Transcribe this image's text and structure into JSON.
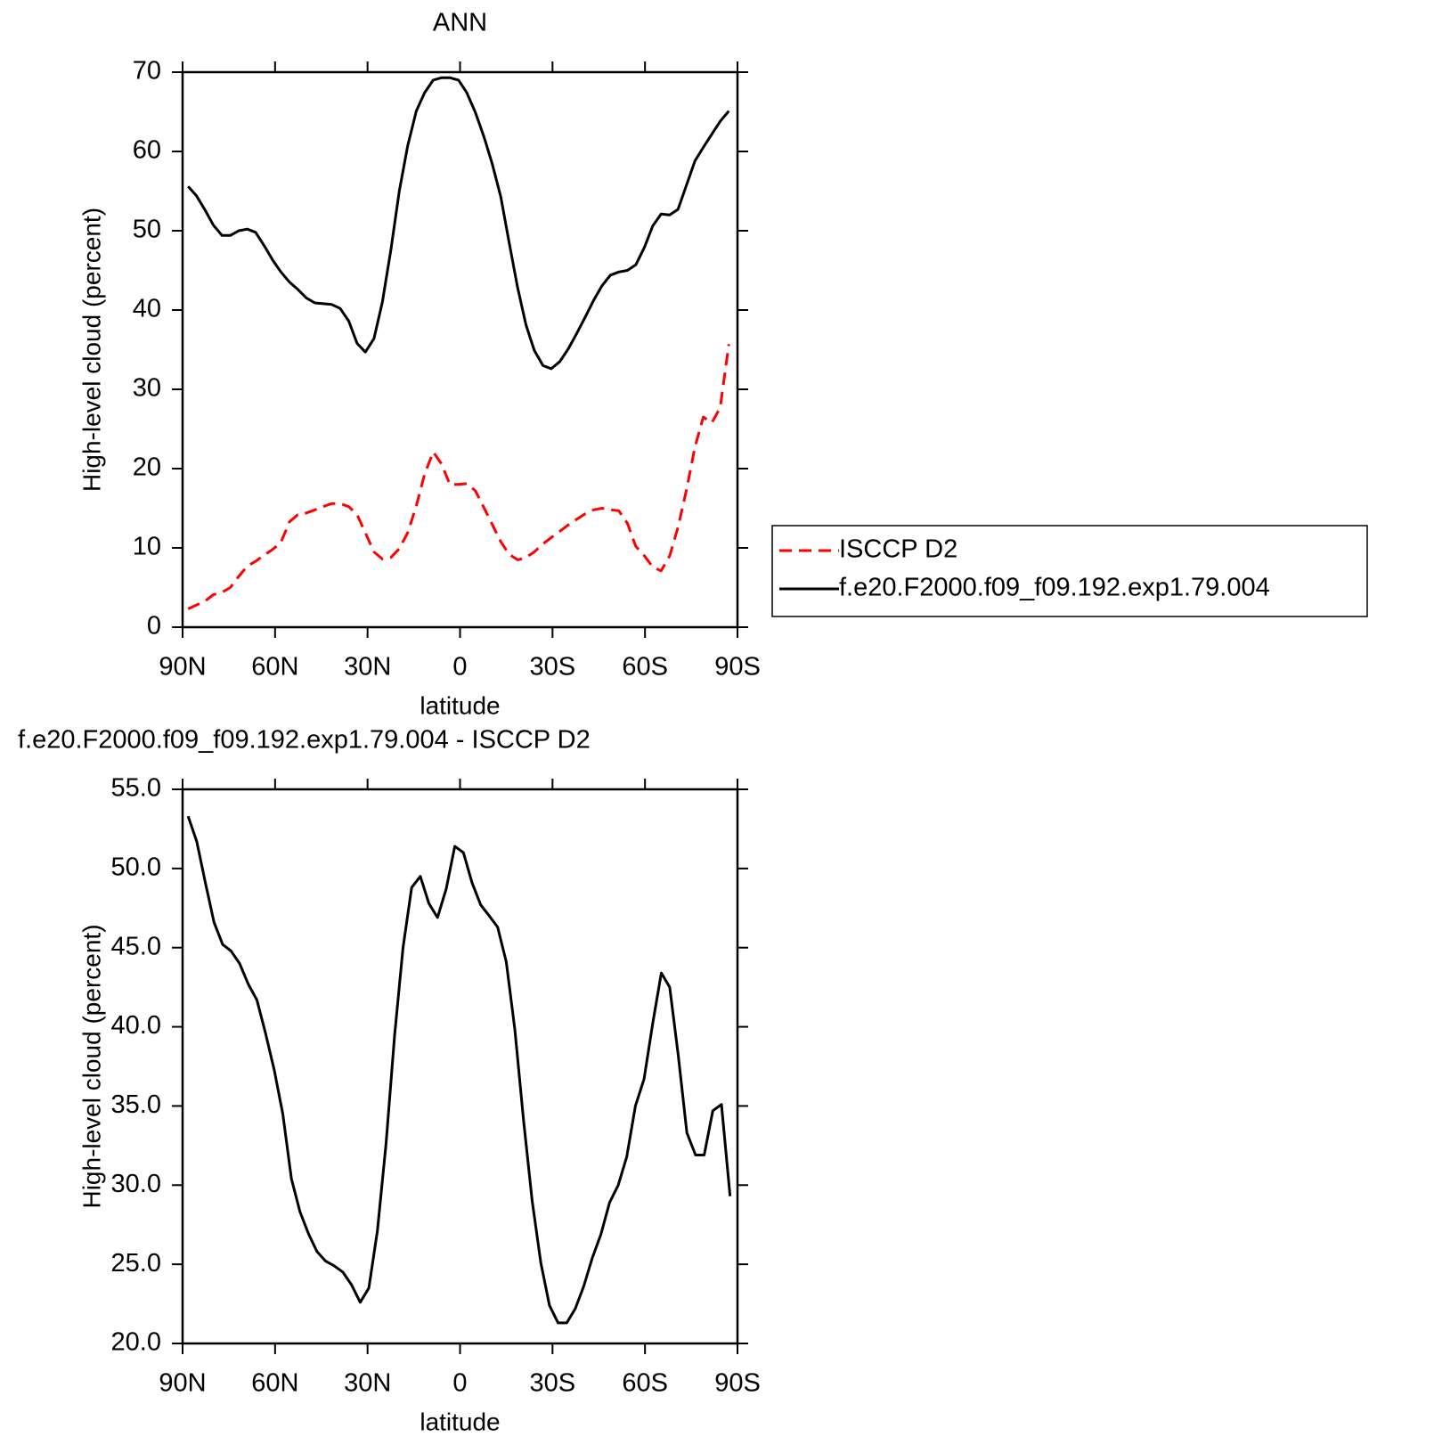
{
  "chart_data": [
    {
      "type": "line",
      "title": "ANN",
      "xlabel": "latitude",
      "ylabel": "High-level cloud (percent)",
      "x": [
        88.2,
        85.5,
        82.7,
        80.0,
        77.2,
        74.5,
        71.8,
        69.0,
        66.3,
        63.5,
        60.8,
        58.1,
        55.3,
        52.6,
        49.8,
        47.1,
        44.4,
        41.6,
        38.9,
        36.1,
        33.4,
        30.7,
        27.9,
        25.2,
        22.4,
        19.7,
        17.0,
        14.2,
        11.5,
        8.7,
        6.0,
        3.3,
        0.5,
        -2.2,
        -5.0,
        -7.7,
        -10.4,
        -13.2,
        -15.9,
        -18.7,
        -21.4,
        -24.1,
        -26.9,
        -29.6,
        -32.4,
        -35.1,
        -37.8,
        -40.6,
        -43.3,
        -46.1,
        -48.8,
        -51.5,
        -54.3,
        -57.0,
        -59.8,
        -62.5,
        -65.2,
        -68.0,
        -70.7,
        -73.5,
        -76.2,
        -78.9,
        -81.7,
        -84.4,
        -87.2
      ],
      "series": [
        {
          "name": "ISCCP D2",
          "color": "#ff0000",
          "linestyle": "dashed",
          "values": [
            2.3,
            2.8,
            3.3,
            4.1,
            4.4,
            5.0,
            6.4,
            7.7,
            8.3,
            9.1,
            9.8,
            10.7,
            13.3,
            14.2,
            14.4,
            14.8,
            15.2,
            15.6,
            15.6,
            15.2,
            14.2,
            11.9,
            9.5,
            8.6,
            8.8,
            9.9,
            11.9,
            15.3,
            19.3,
            22.1,
            20.6,
            18.0,
            18.0,
            18.1,
            17.2,
            15.1,
            13.0,
            10.8,
            9.2,
            8.5,
            8.8,
            9.5,
            10.5,
            11.3,
            12.1,
            12.9,
            13.6,
            14.3,
            14.8,
            15.0,
            14.8,
            14.7,
            13.1,
            10.2,
            9.0,
            7.6,
            7.1,
            9.0,
            12.6,
            17.4,
            22.7,
            26.5,
            25.8,
            27.7,
            35.7
          ]
        },
        {
          "name": "f.e20.F2000.f09_f09.192.exp1.79.004",
          "color": "#000000",
          "linestyle": "solid",
          "values": [
            55.6,
            54.4,
            52.6,
            50.7,
            49.4,
            49.4,
            50.0,
            50.2,
            49.8,
            48.1,
            46.3,
            44.8,
            43.5,
            42.6,
            41.5,
            40.9,
            40.8,
            40.7,
            40.2,
            38.6,
            35.8,
            34.7,
            36.4,
            41.0,
            47.7,
            55.0,
            60.7,
            65.1,
            67.4,
            69.0,
            69.3,
            69.3,
            69.0,
            67.4,
            64.9,
            61.9,
            58.5,
            54.3,
            48.6,
            42.8,
            38.1,
            34.9,
            33.0,
            32.6,
            33.5,
            35.1,
            37.0,
            39.1,
            41.2,
            43.1,
            44.4,
            44.8,
            45.0,
            45.7,
            47.9,
            50.6,
            52.1,
            52.0,
            52.7,
            55.8,
            58.8,
            60.5,
            62.2,
            63.8,
            65.1
          ]
        }
      ],
      "xlim": [
        90,
        -90
      ],
      "xticks": [
        {
          "value": 90,
          "label": "90N"
        },
        {
          "value": 60,
          "label": "60N"
        },
        {
          "value": 30,
          "label": "30N"
        },
        0,
        {
          "value": -30,
          "label": "30S"
        },
        {
          "value": -60,
          "label": "60S"
        },
        {
          "value": -90,
          "label": "90S"
        }
      ],
      "ylim": [
        0,
        70
      ],
      "yticks": [
        0,
        10,
        20,
        30,
        40,
        50,
        60,
        70
      ],
      "grid": false,
      "legend": "right"
    },
    {
      "type": "line",
      "title": "f.e20.F2000.f09_f09.192.exp1.79.004 - ISCCP D2",
      "xlabel": "latitude",
      "ylabel": "High-level cloud (percent)",
      "x": [
        88.2,
        85.4,
        82.6,
        79.8,
        77.0,
        74.3,
        71.5,
        68.7,
        65.9,
        63.1,
        60.3,
        57.5,
        54.7,
        51.9,
        49.1,
        46.4,
        43.6,
        40.8,
        38.0,
        35.2,
        32.4,
        29.6,
        26.8,
        24.0,
        21.2,
        18.5,
        15.7,
        12.9,
        10.1,
        7.3,
        4.5,
        1.7,
        -1.1,
        -3.9,
        -6.7,
        -9.5,
        -12.2,
        -15.0,
        -17.8,
        -20.6,
        -23.4,
        -26.2,
        -29.0,
        -31.8,
        -34.6,
        -37.4,
        -40.1,
        -42.9,
        -45.7,
        -48.5,
        -51.3,
        -54.1,
        -56.9,
        -59.7,
        -62.5,
        -65.3,
        -68.0,
        -70.8,
        -73.6,
        -76.4,
        -79.2,
        -82.0,
        -84.8,
        -87.6
      ],
      "values": [
        53.3,
        51.7,
        49.1,
        46.6,
        45.2,
        44.8,
        44.0,
        42.7,
        41.7,
        39.6,
        37.3,
        34.5,
        30.4,
        28.3,
        26.9,
        25.8,
        25.2,
        24.9,
        24.5,
        23.7,
        22.6,
        23.5,
        27.1,
        32.6,
        39.5,
        45.0,
        48.8,
        49.5,
        47.8,
        46.9,
        48.7,
        51.4,
        51.0,
        49.1,
        47.7,
        47.0,
        46.3,
        44.1,
        39.8,
        34.1,
        29.0,
        25.1,
        22.4,
        21.3,
        21.3,
        22.2,
        23.6,
        25.4,
        26.9,
        28.9,
        30.0,
        31.8,
        35.0,
        36.7,
        40.2,
        43.4,
        42.5,
        38.2,
        33.3,
        31.9,
        31.9,
        34.7,
        35.1,
        29.3
      ],
      "color": "#000000",
      "xlim": [
        90,
        -90
      ],
      "xticks": [
        {
          "value": 90,
          "label": "90N"
        },
        {
          "value": 60,
          "label": "60N"
        },
        {
          "value": 30,
          "label": "30N"
        },
        0,
        {
          "value": -30,
          "label": "30S"
        },
        {
          "value": -60,
          "label": "60S"
        },
        {
          "value": -90,
          "label": "90S"
        }
      ],
      "ylim": [
        20,
        55
      ],
      "yticks": [
        {
          "value": 20,
          "label": "20.0"
        },
        {
          "value": 25,
          "label": "25.0"
        },
        {
          "value": 30,
          "label": "30.0"
        },
        {
          "value": 35,
          "label": "35.0"
        },
        {
          "value": 40,
          "label": "40.0"
        },
        {
          "value": 45,
          "label": "45.0"
        },
        {
          "value": 50,
          "label": "50.0"
        },
        {
          "value": 55,
          "label": "55.0"
        }
      ],
      "grid": false
    }
  ]
}
